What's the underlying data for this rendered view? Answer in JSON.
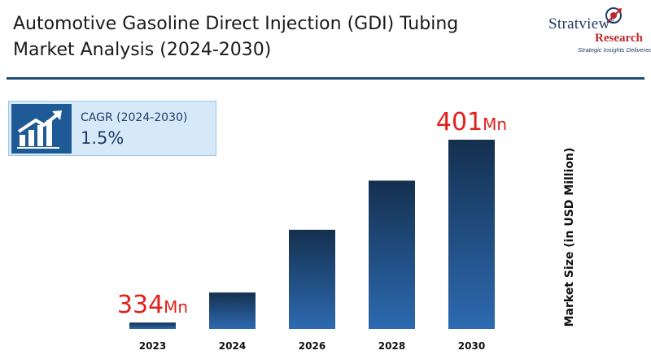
{
  "header": {
    "title_line1": "Automotive Gasoline Direct Injection (GDI) Tubing",
    "title_line2": "Market Analysis (2024-2030)"
  },
  "logo": {
    "name": "Stratview",
    "registered": "®",
    "sub": "Research",
    "tagline": "Strategic Insights Delivered"
  },
  "cagr": {
    "label": "CAGR (2024-2030)",
    "value": "1.5%",
    "icon": "growth-chart-icon"
  },
  "colors": {
    "bar_top": "#14304f",
    "bar_bottom": "#2d6ab1",
    "label_red": "#e0211b",
    "divider": "#1f4e79"
  },
  "chart_data": {
    "type": "bar",
    "categories": [
      "2023",
      "2024",
      "2026",
      "2028",
      "2030"
    ],
    "values": [
      334,
      345,
      368,
      386,
      401
    ],
    "data_labels": [
      {
        "category": "2023",
        "number": "334",
        "unit": "Mn"
      },
      {
        "category": "2030",
        "number": "401",
        "unit": "Mn"
      }
    ],
    "ylabel": "Market Size (in USD Million)",
    "xlabel": "",
    "grid": false,
    "legend": "none"
  }
}
